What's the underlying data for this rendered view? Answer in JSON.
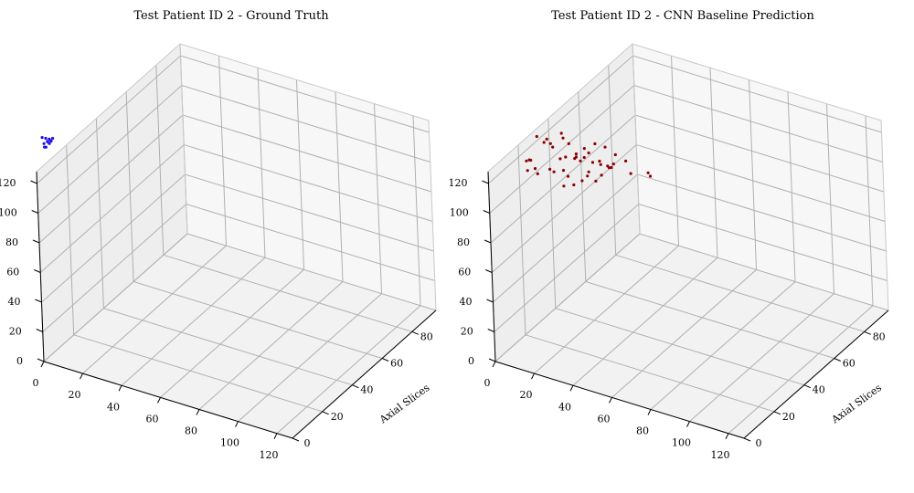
{
  "chart_data": [
    {
      "type": "scatter",
      "title": "Test Patient ID 2 - Ground Truth",
      "xlabel": "",
      "ylabel": "Axial Slices",
      "zlabel": "",
      "x_ticks": [
        "0",
        "20",
        "40",
        "60",
        "80",
        "100",
        "120"
      ],
      "y_ticks": [
        "0",
        "20",
        "40",
        "60",
        "80"
      ],
      "z_ticks": [
        "0",
        "20",
        "40",
        "60",
        "80",
        "100",
        "120"
      ],
      "xlim": [
        0,
        128
      ],
      "ylim": [
        0,
        96
      ],
      "zlim": [
        0,
        128
      ],
      "marker_color": "#1f0fe6",
      "points": [
        [
          2,
          2,
          150
        ],
        [
          3,
          3,
          149
        ],
        [
          4,
          4,
          148
        ],
        [
          5,
          5,
          148
        ],
        [
          4,
          3,
          147
        ],
        [
          3,
          4,
          146
        ],
        [
          2,
          3,
          145
        ],
        [
          3,
          2,
          144
        ],
        [
          4,
          5,
          146
        ],
        [
          5,
          4,
          147
        ],
        [
          3,
          3,
          143
        ],
        [
          4,
          4,
          145
        ]
      ]
    },
    {
      "type": "scatter",
      "title": "Test Patient ID 2 - CNN Baseline Prediction",
      "xlabel": "",
      "ylabel": "Axial Slices",
      "zlabel": "",
      "x_ticks": [
        "0",
        "20",
        "40",
        "60",
        "80",
        "100",
        "120"
      ],
      "y_ticks": [
        "0",
        "20",
        "40",
        "60",
        "80"
      ],
      "z_ticks": [
        "0",
        "20",
        "40",
        "60",
        "80",
        "100",
        "120"
      ],
      "xlim": [
        0,
        128
      ],
      "ylim": [
        0,
        96
      ],
      "zlim": [
        0,
        128
      ],
      "marker_color": "#8b0000",
      "points": [
        [
          18,
          10,
          150
        ],
        [
          20,
          12,
          145
        ],
        [
          22,
          15,
          140
        ],
        [
          25,
          10,
          148
        ],
        [
          28,
          18,
          142
        ],
        [
          15,
          20,
          138
        ],
        [
          30,
          20,
          132
        ],
        [
          26,
          25,
          128
        ],
        [
          20,
          22,
          125
        ],
        [
          18,
          28,
          120
        ],
        [
          24,
          30,
          118
        ],
        [
          32,
          28,
          122
        ],
        [
          35,
          22,
          135
        ],
        [
          38,
          25,
          128
        ],
        [
          40,
          30,
          120
        ],
        [
          22,
          35,
          115
        ],
        [
          28,
          38,
          110
        ],
        [
          30,
          32,
          105
        ],
        [
          15,
          30,
          108
        ],
        [
          12,
          25,
          112
        ],
        [
          10,
          18,
          118
        ],
        [
          8,
          15,
          125
        ],
        [
          12,
          12,
          130
        ],
        [
          16,
          8,
          135
        ],
        [
          34,
          14,
          138
        ],
        [
          36,
          18,
          142
        ],
        [
          40,
          20,
          145
        ],
        [
          42,
          24,
          140
        ],
        [
          44,
          28,
          132
        ],
        [
          46,
          32,
          125
        ],
        [
          20,
          40,
          100
        ],
        [
          25,
          42,
          98
        ],
        [
          18,
          38,
          95
        ],
        [
          14,
          34,
          100
        ],
        [
          10,
          30,
          105
        ],
        [
          8,
          22,
          110
        ],
        [
          6,
          18,
          115
        ],
        [
          30,
          40,
          108
        ],
        [
          34,
          36,
          112
        ],
        [
          38,
          34,
          118
        ],
        [
          26,
          16,
          150
        ],
        [
          30,
          12,
          152
        ],
        [
          50,
          30,
          120
        ],
        [
          55,
          35,
          118
        ],
        [
          52,
          40,
          110
        ],
        [
          10,
          36,
          90
        ],
        [
          12,
          40,
          88
        ],
        [
          16,
          44,
          92
        ]
      ]
    }
  ]
}
